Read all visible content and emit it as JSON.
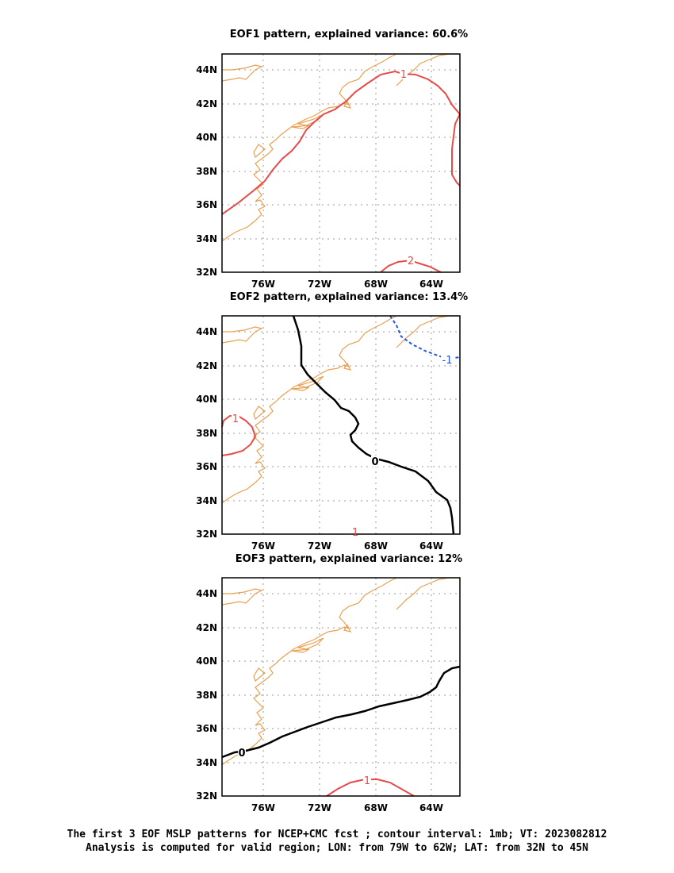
{
  "panels": [
    {
      "title": "EOF1 pattern, explained variance: 60.6%",
      "contours": [
        {
          "label": "1",
          "value": 1,
          "color": "#e84a4a",
          "dashed": false
        },
        {
          "label": "2",
          "value": 2,
          "color": "#e84a4a",
          "dashed": false
        }
      ]
    },
    {
      "title": "EOF2 pattern, explained variance: 13.4%",
      "contours": [
        {
          "label": "0",
          "value": 0,
          "color": "#000000",
          "dashed": false
        },
        {
          "label": "1",
          "value": 1,
          "color": "#e84a4a",
          "dashed": false
        },
        {
          "label": "-1",
          "value": -1,
          "color": "#2255dd",
          "dashed": true
        },
        {
          "label": "1",
          "value": 1,
          "color": "#e84a4a",
          "dashed": false
        }
      ]
    },
    {
      "title": "EOF3 pattern, explained variance: 12%",
      "contours": [
        {
          "label": "0",
          "value": 0,
          "color": "#000000",
          "dashed": false
        },
        {
          "label": "1",
          "value": 1,
          "color": "#e84a4a",
          "dashed": false
        }
      ]
    }
  ],
  "axes": {
    "lat_ticks": [
      "44N",
      "42N",
      "40N",
      "38N",
      "36N",
      "34N",
      "32N"
    ],
    "lon_ticks": [
      "76W",
      "72W",
      "68W",
      "64W"
    ],
    "lon_range": [
      -79,
      -62
    ],
    "lat_range": [
      32,
      45
    ],
    "grid": true
  },
  "colors": {
    "coastline": "#e8a050",
    "positive": "#e84a4a",
    "negative": "#2255dd",
    "zero": "#000000",
    "grid": "#999999"
  },
  "caption": {
    "line1": "The first 3 EOF MSLP patterns for NCEP+CMC fcst ; contour interval: 1mb; VT: 2023082812",
    "line2": "Analysis is computed for valid region; LON: from 79W to 62W; LAT: from 32N to 45N"
  }
}
